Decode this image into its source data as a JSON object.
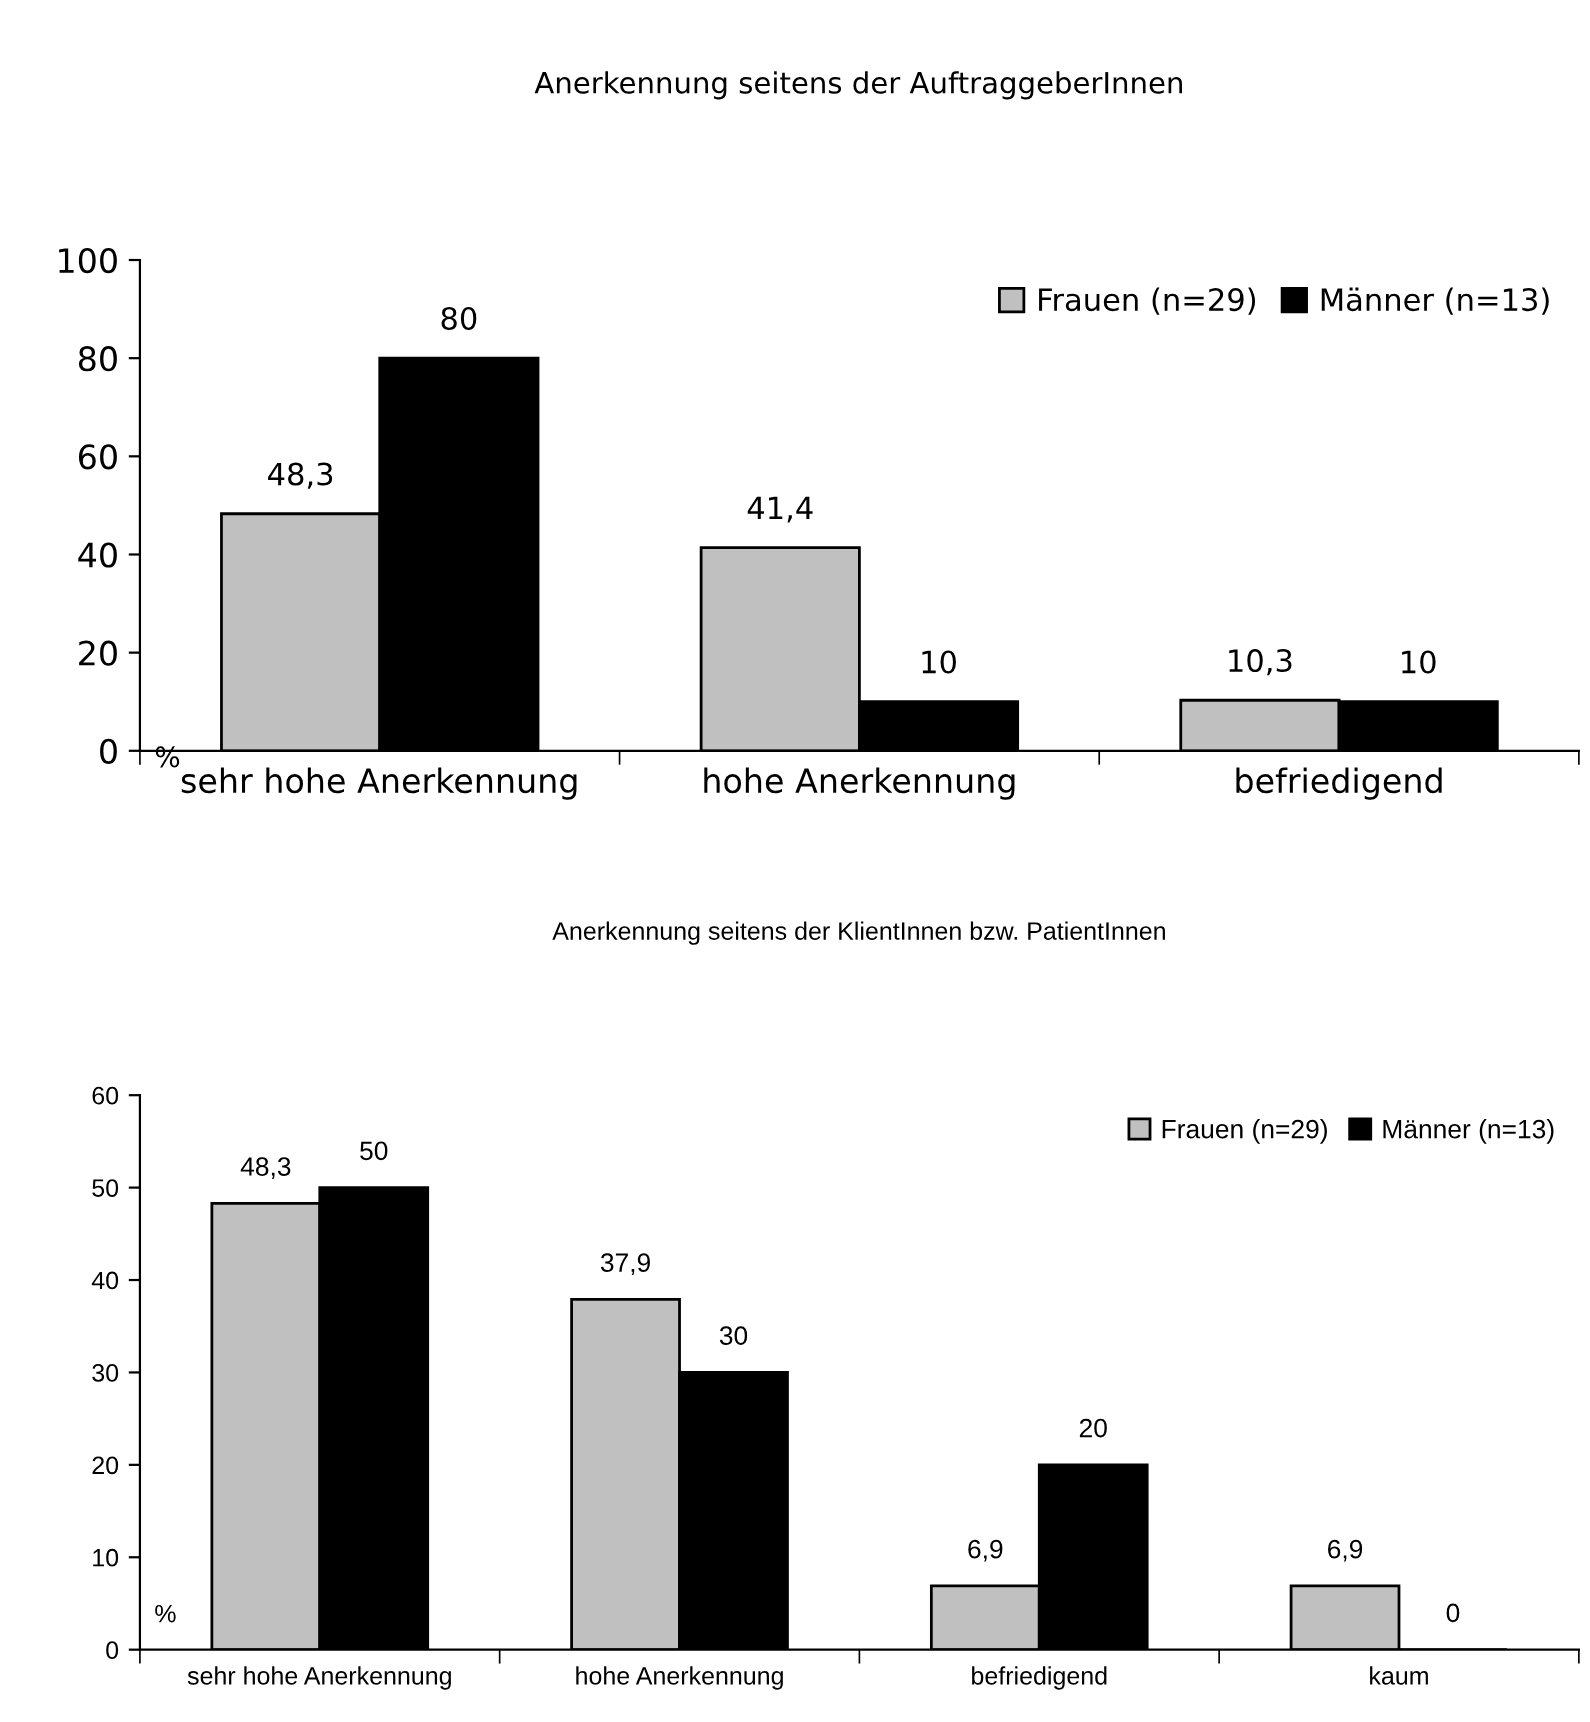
{
  "chart_data": [
    {
      "type": "bar",
      "title": "Anerkennung seitens der AuftraggeberInnen",
      "categories": [
        "sehr hohe Anerkennung",
        "hohe Anerkennung",
        "befriedigend"
      ],
      "series": [
        {
          "name": "Frauen (n=29)",
          "color": "#c0c0c0",
          "values": [
            48.3,
            41.4,
            10.3
          ],
          "value_labels": [
            "48,3",
            "41,4",
            "10,3"
          ]
        },
        {
          "name": "Männer (n=13)",
          "color": "#000000",
          "values": [
            80,
            10,
            10
          ],
          "value_labels": [
            "80",
            "10",
            "10"
          ]
        }
      ],
      "ylim": [
        0,
        100
      ],
      "yticks": [
        0,
        20,
        40,
        60,
        80,
        100
      ],
      "legend": "top right",
      "grid": false,
      "annotations": [
        "%"
      ]
    },
    {
      "type": "bar",
      "title": "Anerkennung seitens der KlientInnen bzw. PatientInnen",
      "categories": [
        "sehr hohe Anerkennung",
        "hohe Anerkennung",
        "befriedigend",
        "kaum"
      ],
      "series": [
        {
          "name": "Frauen (n=29)",
          "color": "#c0c0c0",
          "values": [
            48.3,
            37.9,
            6.9,
            6.9
          ],
          "value_labels": [
            "48,3",
            "37,9",
            "6,9",
            "6,9"
          ]
        },
        {
          "name": "Männer (n=13)",
          "color": "#000000",
          "values": [
            50,
            30,
            20,
            0
          ],
          "value_labels": [
            "50",
            "30",
            "20",
            "0"
          ]
        }
      ],
      "ylim": [
        0,
        60
      ],
      "yticks": [
        0,
        10,
        20,
        30,
        40,
        50,
        60
      ],
      "legend": "top right",
      "grid": false,
      "annotations": [
        "%"
      ]
    }
  ]
}
